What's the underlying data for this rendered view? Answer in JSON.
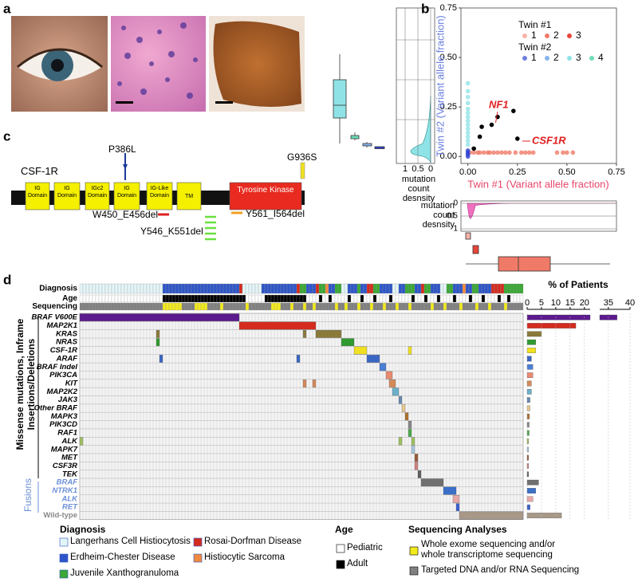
{
  "panel_labels": [
    "a",
    "b",
    "c",
    "d"
  ],
  "scatter": {
    "xlabel": "Twin #1 (Variant allele fraction)",
    "ylabel": "Twin #2 (Variant allele fraction)",
    "xlim": [
      -0.035,
      0.75
    ],
    "ylim": [
      -0.035,
      0.75
    ],
    "xticks": [
      {
        "value": 0,
        "label": "0.00"
      },
      {
        "value": 0.25,
        "label": "0.25"
      },
      {
        "value": 0.5,
        "label": "0.50"
      },
      {
        "value": 0.75,
        "label": "0.75"
      }
    ],
    "yticks": [
      {
        "value": 0,
        "label": "0.00"
      },
      {
        "value": 0.25,
        "label": "0.25"
      },
      {
        "value": 0.5,
        "label": "0.50"
      },
      {
        "value": 0.75,
        "label": "0.75"
      }
    ],
    "legend": [
      {
        "title": "Twin #1",
        "items": [
          {
            "name": "1",
            "color": "#f6b3a8"
          },
          {
            "name": "2",
            "color": "#f07a68"
          },
          {
            "name": "3",
            "color": "#e8453a"
          }
        ]
      },
      {
        "title": "Twin #2",
        "items": [
          {
            "name": "1",
            "color": "#6f7fe0"
          },
          {
            "name": "2",
            "color": "#86b4ec"
          },
          {
            "name": "3",
            "color": "#8fe3e6"
          },
          {
            "name": "4",
            "color": "#6fdcb8"
          }
        ]
      }
    ],
    "series": [
      {
        "color": "#f07a68",
        "x": [
          0.01,
          0.03,
          0.05,
          0.06,
          0.08,
          0.1,
          0.11,
          0.13,
          0.15,
          0.17,
          0.19,
          0.21,
          0.24,
          0.27,
          0.29,
          0.31,
          0.33,
          0.45,
          0.48,
          0.5,
          0.53
        ],
        "y": [
          0.02,
          0.02,
          0.02,
          0.02,
          0.02,
          0.02,
          0.02,
          0.02,
          0.02,
          0.02,
          0.02,
          0.02,
          0.02,
          0.02,
          0.02,
          0.02,
          0.02,
          0.02,
          0.02,
          0.02,
          0.02
        ]
      },
      {
        "color": "#8fe3e6",
        "x": [
          0,
          0,
          0,
          0,
          0,
          0,
          0,
          0,
          0,
          0,
          0,
          0,
          0,
          0
        ],
        "y": [
          0.06,
          0.08,
          0.1,
          0.12,
          0.14,
          0.16,
          0.18,
          0.2,
          0.22,
          0.24,
          0.27,
          0.3,
          0.33,
          0.37
        ]
      },
      {
        "color": "#3040d0",
        "x": [
          0,
          0,
          0,
          0
        ],
        "y": [
          0,
          0.01,
          0.02,
          0.03
        ]
      },
      {
        "color": "#000000",
        "x": [
          0.03,
          0.06,
          0.07,
          0.12,
          0.15,
          0.23,
          0.25
        ],
        "y": [
          0.04,
          0.1,
          0.15,
          0.16,
          0.2,
          0.23,
          0.09
        ]
      }
    ],
    "annotations": [
      "NF1",
      "CSF1R"
    ],
    "density_label": "mutation count desnsity",
    "density_ticks": [
      1,
      0.5,
      0
    ]
  },
  "protein": {
    "name": "CSF-1R",
    "domains": [
      "IG Domain",
      "IG Domain",
      "IGc2 Domain",
      "IG Domain",
      "IG-Like Domain",
      "TM",
      "Tyrosine Kinase"
    ],
    "point_mutations": [
      "P386L",
      "G936S"
    ],
    "deletions": [
      "W450_E456del",
      "Y546_K551del",
      "Y561_I564del"
    ]
  },
  "oncoprint": {
    "tracks": [
      "Diagnosis",
      "Age",
      "Sequencing"
    ],
    "groups": [
      "Missense mutations, Inframe Insertions/Deletions",
      "Fusions"
    ],
    "rows": [
      {
        "label": "BRAF V600E",
        "color": "#5b1a8e",
        "percent": 37
      },
      {
        "label": "MAP2K1",
        "color": "#d42b1e",
        "percent": 17
      },
      {
        "label": "KRAS",
        "color": "#8a7a3a",
        "percent": 5
      },
      {
        "label": "NRAS",
        "color": "#2f9a2f",
        "percent": 3
      },
      {
        "label": "CSF-1R",
        "color": "#f0e020",
        "percent": 3
      },
      {
        "label": "ARAF",
        "color": "#3a66c4",
        "percent": 1.5
      },
      {
        "label": "BRAF Indel",
        "color": "#4a7fd4",
        "percent": 2
      },
      {
        "label": "PIK3CA",
        "color": "#e88a70",
        "percent": 2
      },
      {
        "label": "KIT",
        "color": "#d58a5a",
        "percent": 1.5
      },
      {
        "label": "MAP2K2",
        "color": "#6ab0c8",
        "percent": 1.5
      },
      {
        "label": "JAK3",
        "color": "#6a8ab0",
        "percent": 1
      },
      {
        "label": "Other BRAF",
        "color": "#e8c890",
        "percent": 1
      },
      {
        "label": "MAPK3",
        "color": "#b07030",
        "percent": 0.8
      },
      {
        "label": "PIK3CD",
        "color": "#888888",
        "percent": 0.7
      },
      {
        "label": "RAF1",
        "color": "#4caa4c",
        "percent": 0.7
      },
      {
        "label": "ALK",
        "color": "#a0c060",
        "percent": 0.5
      },
      {
        "label": "MAPK7",
        "color": "#a8c8e0",
        "percent": 0.5
      },
      {
        "label": "MET",
        "color": "#9a5a3a",
        "percent": 0.5
      },
      {
        "label": "CSF3R",
        "color": "#d08080",
        "percent": 0.5
      },
      {
        "label": "TEK",
        "color": "#606060",
        "percent": 0.5
      },
      {
        "label": "BRAF",
        "color": "#707070",
        "percent": 4
      },
      {
        "label": "NTRK1",
        "color": "#3a70c8",
        "percent": 3
      },
      {
        "label": "ALK",
        "color": "#e8a8a8",
        "percent": 2
      },
      {
        "label": "RET",
        "color": "#3a60d0",
        "percent": 1
      },
      {
        "label": "Wild-type",
        "color": "#a89888",
        "percent": 12
      }
    ],
    "percent_label": "% of Patients",
    "percent_xlim": [
      0,
      40
    ],
    "percent_axis_break": [
      22,
      33
    ],
    "percent_ticks": [
      0,
      5,
      10,
      15,
      20,
      35,
      40
    ]
  },
  "legend": {
    "diagnosis": {
      "title": "Diagnosis",
      "items": [
        {
          "name": "Langerhans Cell Histiocytosis",
          "color": "#e4f5f8"
        },
        {
          "name": "Erdheim-Chester Disease",
          "color": "#2d55c8"
        },
        {
          "name": "Juvenile Xanthogranuloma",
          "color": "#3aa835"
        },
        {
          "name": "Rosai-Dorfman Disease",
          "color": "#d42b1e"
        },
        {
          "name": "Histiocytic Sarcoma",
          "color": "#f08a40"
        }
      ]
    },
    "age": {
      "title": "Age",
      "items": [
        {
          "name": "Pediatric",
          "color": "#ffffff"
        },
        {
          "name": "Adult",
          "color": "#000000"
        }
      ]
    },
    "sequencing": {
      "title": "Sequencing Analyses",
      "items": [
        {
          "name": "Whole exome sequencing and/or whole transcriptome sequencing",
          "color": "#f2ea1c"
        },
        {
          "name": "Targeted DNA and/or RNA Sequencing",
          "color": "#808080"
        }
      ]
    }
  }
}
